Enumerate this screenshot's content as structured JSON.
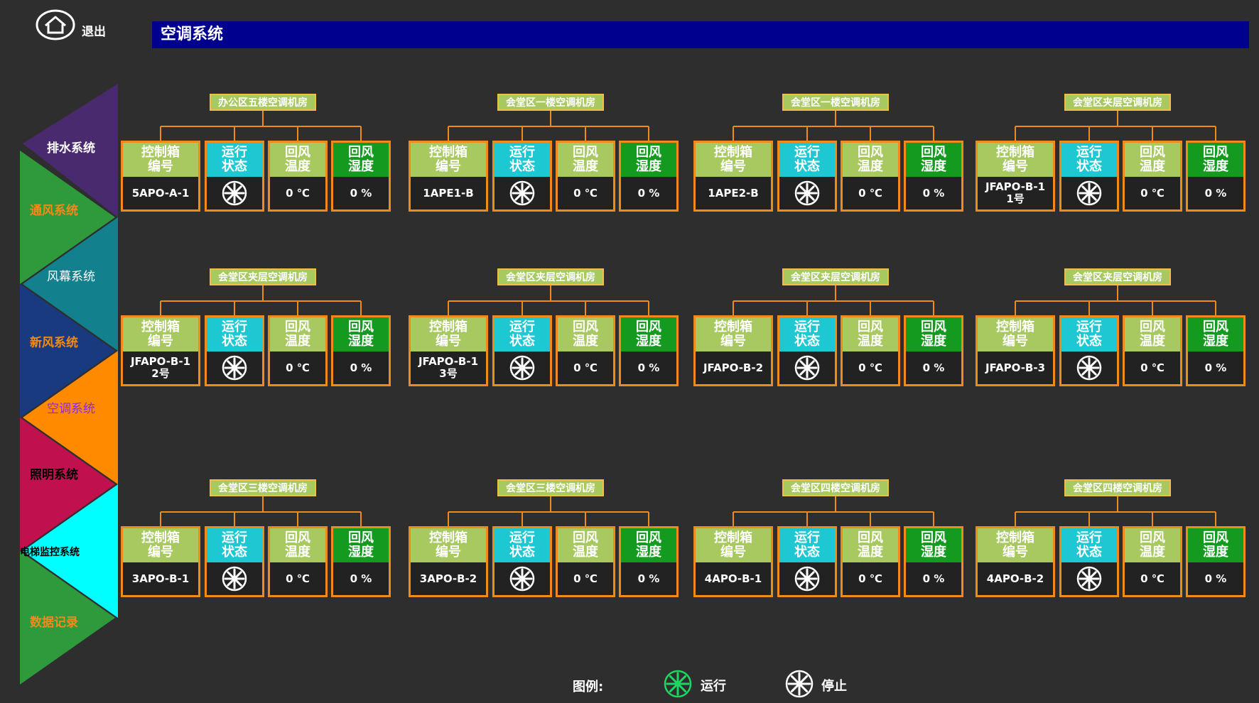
{
  "header": {
    "exit_label": "退出",
    "title": "空调系统"
  },
  "nav": [
    {
      "label": "排水系统",
      "fill": "#4a2a6e",
      "text_color": "#ffffff"
    },
    {
      "label": "通风系统",
      "fill": "#2f9a3c",
      "text_color": "#f08a1a"
    },
    {
      "label": "风幕系统",
      "fill": "#13808e",
      "text_color": "#ffffff"
    },
    {
      "label": "新风系统",
      "fill": "#1a3a80",
      "text_color": "#f08a1a"
    },
    {
      "label": "空调系统",
      "fill": "#ff8a00",
      "text_color": "#8a2be2"
    },
    {
      "label": "照明系统",
      "fill": "#c0104e",
      "text_color": "#000000"
    },
    {
      "label": "电梯监控系统",
      "fill": "#00ffff",
      "text_color": "#000000"
    },
    {
      "label": "数据记录",
      "fill": "#2f9a3c",
      "text_color": "#f08a1a"
    }
  ],
  "captions": {
    "code": "控制箱 编号",
    "run": "运行 状态",
    "temp": "回风 温度",
    "hum": "回风 湿度"
  },
  "units": [
    {
      "room": "办公区五楼空调机房",
      "code": "5APO-A-1",
      "temp": "0 ℃",
      "hum": "0 %",
      "running": false
    },
    {
      "room": "会堂区一楼空调机房",
      "code": "1APE1-B",
      "temp": "0 ℃",
      "hum": "0 %",
      "running": false
    },
    {
      "room": "会堂区一楼空调机房",
      "code": "1APE2-B",
      "temp": "0 ℃",
      "hum": "0 %",
      "running": false
    },
    {
      "room": "会堂区夹层空调机房",
      "code": "JFAPO-B-1 1号",
      "temp": "0 ℃",
      "hum": "0 %",
      "running": false
    },
    {
      "room": "会堂区夹层空调机房",
      "code": "JFAPO-B-1 2号",
      "temp": "0 ℃",
      "hum": "0 %",
      "running": false
    },
    {
      "room": "会堂区夹层空调机房",
      "code": "JFAPO-B-1 3号",
      "temp": "0 ℃",
      "hum": "0 %",
      "running": false
    },
    {
      "room": "会堂区夹层空调机房",
      "code": "JFAPO-B-2",
      "temp": "0 ℃",
      "hum": "0 %",
      "running": false
    },
    {
      "room": "会堂区夹层空调机房",
      "code": "JFAPO-B-3",
      "temp": "0 ℃",
      "hum": "0 %",
      "running": false
    },
    {
      "room": "会堂区三楼空调机房",
      "code": "3APO-B-1",
      "temp": "0 ℃",
      "hum": "0 %",
      "running": false
    },
    {
      "room": "会堂区三楼空调机房",
      "code": "3APO-B-2",
      "temp": "0 ℃",
      "hum": "0 %",
      "running": false
    },
    {
      "room": "会堂区四楼空调机房",
      "code": "4APO-B-1",
      "temp": "0 ℃",
      "hum": "0 %",
      "running": false
    },
    {
      "room": "会堂区四楼空调机房",
      "code": "4APO-B-2",
      "temp": "0 ℃",
      "hum": "0 %",
      "running": false
    }
  ],
  "legend": {
    "title": "图例:",
    "run_label": "运行",
    "stop_label": "停止",
    "run_color": "#1ed760",
    "stop_color": "#ffffff"
  },
  "icons": {
    "home": "home-icon",
    "fan": "fan-status-icon"
  }
}
